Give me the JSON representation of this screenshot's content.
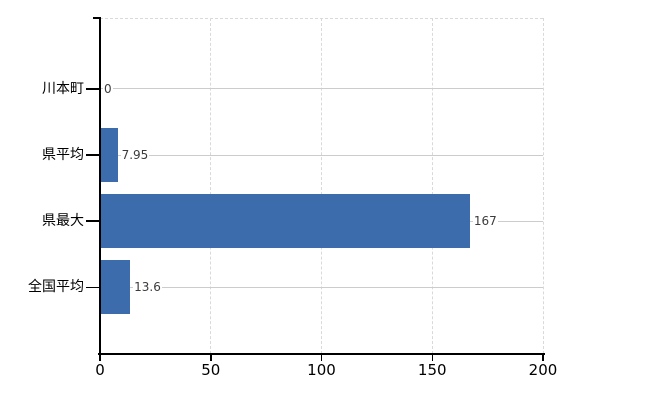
{
  "chart_data": {
    "type": "bar",
    "orientation": "horizontal",
    "categories": [
      "川本町",
      "県平均",
      "県最大",
      "全国平均"
    ],
    "values": [
      0,
      7.95,
      167,
      13.6
    ],
    "value_labels": [
      "0",
      "7.95",
      "167",
      "13.6"
    ],
    "x_ticks": [
      0,
      50,
      100,
      150,
      200
    ],
    "x_tick_labels": [
      "0",
      "50",
      "100",
      "150",
      "200"
    ],
    "xlim": [
      0,
      200
    ],
    "legend": "none",
    "grid": {
      "vertical": "dashed",
      "horizontal": "solid"
    },
    "bar_color": "#3c6cab",
    "axis_color": "#000000",
    "grid_solid_color": "#cccccc",
    "grid_dashed_color": "#d9d9d9",
    "value_label_color": "#3c3c3c",
    "background_color": "#ffffff"
  }
}
